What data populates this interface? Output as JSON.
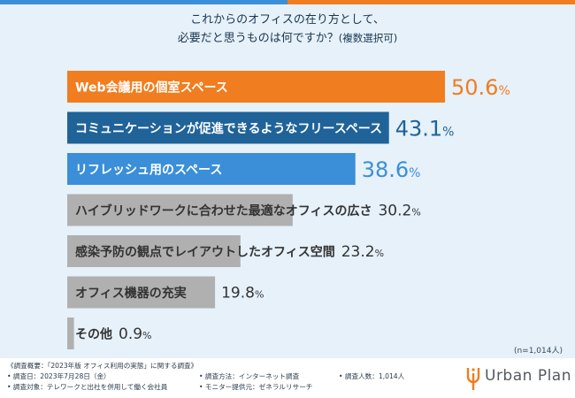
{
  "header": {
    "title_line1": "これからのオフィスの在り方として、",
    "title_line2": "必要だと思うものは何ですか？",
    "title_note": "(複数選択可)"
  },
  "chart_data": {
    "type": "bar",
    "orientation": "horizontal",
    "title": "これからのオフィスの在り方として、必要だと思うものは何ですか？(複数選択可)",
    "categories": [
      "Web会議用の個室スペース",
      "コミュニケーションが促進できるようなフリースペース",
      "リフレッシュ用のスペース",
      "ハイブリッドワークに合わせた最適なオフィスの広さ",
      "感染予防の観点でレイアウトしたオフィス空間",
      "オフィス機器の充実",
      "その他"
    ],
    "values": [
      50.6,
      43.1,
      38.6,
      30.2,
      23.2,
      19.8,
      0.9
    ],
    "unit": "%",
    "value_labels": [
      "50.6",
      "43.1",
      "38.6",
      "30.2",
      "23.2",
      "19.8",
      "0.9"
    ],
    "colors": [
      "#f07d1f",
      "#1f6399",
      "#3a8fd8",
      "#b0b0b0",
      "#b0b0b0",
      "#b0b0b0",
      "#b0b0b0"
    ],
    "xlim": [
      0,
      50.6
    ],
    "sample_size": "(n=1,014人)"
  },
  "footer": {
    "survey_title": "《調査概要：「2023年版 オフィス利用の実態」に関する調査》",
    "date": "• 調査日：2023年7月28日（金）",
    "target": "• 調査対象：テレワークと出社を併用して働く会社員",
    "method": "• 調査方法：インターネット調査",
    "provider": "• モニター提供元：ゼネラルリサーチ",
    "respondents": "• 調査人数：1,014人",
    "brand": "Urban Plan",
    "brand_color": "#f07d1f"
  }
}
